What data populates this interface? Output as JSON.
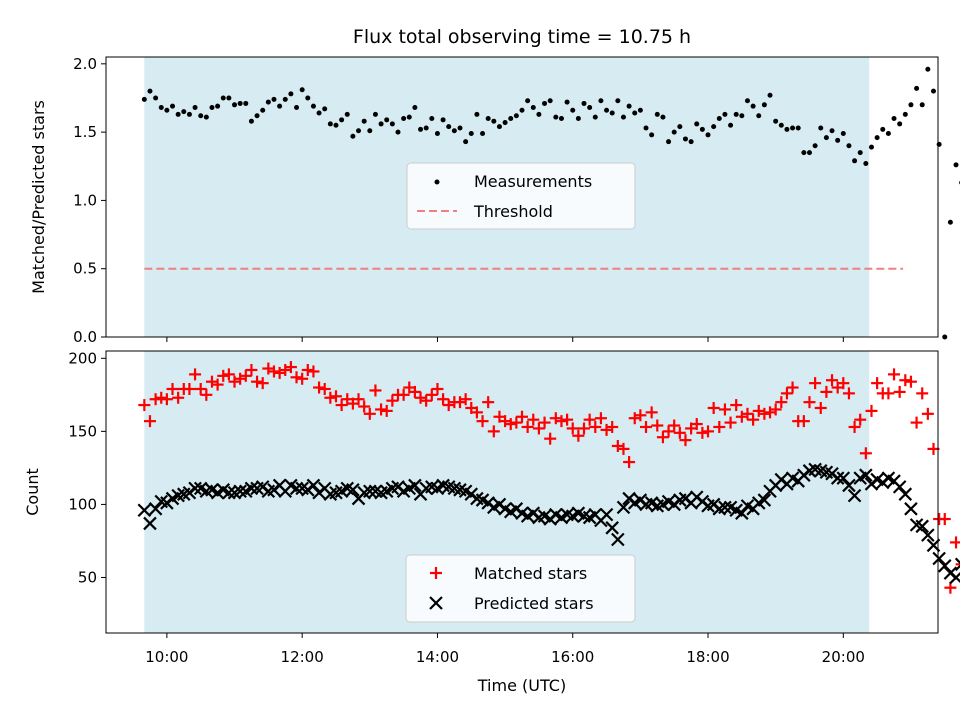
{
  "colors": {
    "shade": "#add8e6",
    "measurement": "#000000",
    "threshold": "#f08080",
    "matched": "#ff0000",
    "predicted": "#000000"
  },
  "chart_data": [
    {
      "type": "scatter",
      "title": "Flux total observing time = 10.75 h",
      "xlabel": "",
      "ylabel": "Matched/Predicted stars",
      "ylim": [
        0,
        2.05
      ],
      "xlim": [
        9.1,
        21.4
      ],
      "yticks": [
        "0.0",
        "0.5",
        "1.0",
        "1.5",
        "2.0"
      ],
      "shaded_interval": [
        "09:40",
        "20:23"
      ],
      "legend": {
        "placement": "center",
        "items": [
          "Measurements",
          "Threshold"
        ]
      },
      "threshold": {
        "name": "Threshold",
        "x_start": "09:40",
        "x_end": "20:53",
        "y": 0.5
      },
      "series": [
        {
          "name": "Measurements",
          "x_start": "09:40",
          "x_step_minutes": 5,
          "values": [
            1.74,
            1.8,
            1.75,
            1.68,
            1.66,
            1.69,
            1.63,
            1.65,
            1.63,
            1.68,
            1.62,
            1.61,
            1.68,
            1.69,
            1.75,
            1.75,
            1.7,
            1.71,
            1.71,
            1.58,
            1.62,
            1.66,
            1.72,
            1.74,
            1.69,
            1.74,
            1.78,
            1.68,
            1.81,
            1.75,
            1.69,
            1.64,
            1.67,
            1.56,
            1.55,
            1.59,
            1.63,
            1.47,
            1.51,
            1.58,
            1.51,
            1.63,
            1.56,
            1.59,
            1.56,
            1.5,
            1.6,
            1.61,
            1.68,
            1.52,
            1.53,
            1.6,
            1.49,
            1.59,
            1.54,
            1.51,
            1.53,
            1.43,
            1.49,
            1.63,
            1.49,
            1.6,
            1.58,
            1.54,
            1.57,
            1.6,
            1.62,
            1.66,
            1.73,
            1.68,
            1.63,
            1.71,
            1.73,
            1.61,
            1.6,
            1.72,
            1.66,
            1.6,
            1.71,
            1.68,
            1.61,
            1.73,
            1.66,
            1.64,
            1.73,
            1.61,
            1.69,
            1.64,
            1.66,
            1.53,
            1.48,
            1.63,
            1.61,
            1.43,
            1.5,
            1.54,
            1.45,
            1.43,
            1.56,
            1.52,
            1.48,
            1.54,
            1.6,
            1.63,
            1.55,
            1.63,
            1.62,
            1.73,
            1.69,
            1.62,
            1.7,
            1.77,
            1.58,
            1.55,
            1.52,
            1.53,
            1.53,
            1.35,
            1.35,
            1.4,
            1.53,
            1.46,
            1.51,
            1.44,
            1.49,
            1.4,
            1.29,
            1.35,
            1.27,
            1.39,
            1.46,
            1.52,
            1.49,
            1.6,
            1.56,
            1.63,
            1.7,
            1.82,
            1.7,
            1.96,
            1.8,
            1.41,
            0.0,
            0.84,
            1.26,
            1.13,
            0.53,
            0.93
          ]
        }
      ]
    },
    {
      "type": "scatter",
      "title": "",
      "xlabel": "Time (UTC)",
      "ylabel": "Count",
      "ylim": [
        12,
        205
      ],
      "xlim": [
        9.1,
        21.4
      ],
      "yticks": [
        "50",
        "100",
        "150",
        "200"
      ],
      "xticks": [
        "10:00",
        "12:00",
        "14:00",
        "16:00",
        "18:00",
        "20:00"
      ],
      "shaded_interval": [
        "09:40",
        "20:23"
      ],
      "legend": {
        "placement": "lower center",
        "items": [
          "Matched stars",
          "Predicted stars"
        ]
      },
      "series": [
        {
          "name": "Matched stars",
          "x_start": "09:40",
          "x_step_minutes": 5,
          "values": [
            168,
            157,
            172,
            173,
            172,
            179,
            173,
            179,
            179,
            189,
            179,
            175,
            184,
            182,
            188,
            189,
            184,
            186,
            188,
            192,
            184,
            183,
            193,
            191,
            190,
            192,
            194,
            187,
            186,
            192,
            191,
            180,
            179,
            173,
            174,
            168,
            172,
            169,
            172,
            167,
            162,
            178,
            165,
            164,
            171,
            175,
            175,
            180,
            177,
            173,
            171,
            175,
            179,
            172,
            168,
            170,
            170,
            172,
            166,
            163,
            157,
            170,
            150,
            160,
            157,
            155,
            156,
            160,
            153,
            158,
            152,
            156,
            145,
            159,
            157,
            158,
            152,
            147,
            152,
            158,
            153,
            159,
            151,
            153,
            140,
            138,
            129,
            159,
            161,
            153,
            163,
            154,
            146,
            150,
            154,
            149,
            144,
            152,
            155,
            149,
            150,
            166,
            153,
            165,
            156,
            168,
            160,
            162,
            158,
            164,
            162,
            163,
            165,
            170,
            176,
            180,
            157,
            157,
            170,
            183,
            166,
            177,
            185,
            180,
            183,
            176,
            153,
            158,
            135,
            164,
            183,
            176,
            176,
            189,
            177,
            185,
            184,
            156,
            176,
            162,
            138,
            90,
            90,
            43,
            74,
            59,
            37,
            21,
            38
          ]
        },
        {
          "name": "Predicted stars",
          "x_start": "09:40",
          "x_step_minutes": 5,
          "values": [
            96,
            87,
            97,
            102,
            101,
            104,
            106,
            107,
            108,
            111,
            111,
            109,
            110,
            108,
            110,
            108,
            108,
            109,
            109,
            111,
            111,
            112,
            109,
            110,
            113,
            109,
            113,
            111,
            111,
            110,
            113,
            108,
            111,
            107,
            108,
            109,
            111,
            110,
            104,
            108,
            109,
            109,
            108,
            109,
            111,
            112,
            109,
            111,
            113,
            107,
            111,
            112,
            111,
            113,
            112,
            111,
            110,
            109,
            107,
            104,
            103,
            101,
            98,
            100,
            97,
            95,
            97,
            94,
            92,
            94,
            91,
            92,
            90,
            93,
            91,
            93,
            92,
            94,
            92,
            91,
            93,
            89,
            93,
            84,
            76,
            98,
            104,
            101,
            103,
            100,
            101,
            99,
            100,
            102,
            100,
            103,
            104,
            101,
            105,
            102,
            99,
            100,
            97,
            98,
            98,
            96,
            94,
            99,
            97,
            101,
            103,
            109,
            113,
            117,
            114,
            118,
            116,
            120,
            123,
            124,
            123,
            122,
            121,
            118,
            118,
            113,
            106,
            118,
            120,
            114,
            117,
            115,
            118,
            116,
            112,
            107,
            97,
            86,
            85,
            79,
            72,
            63,
            58,
            53,
            50,
            59,
            50,
            42,
            40
          ]
        }
      ]
    }
  ]
}
